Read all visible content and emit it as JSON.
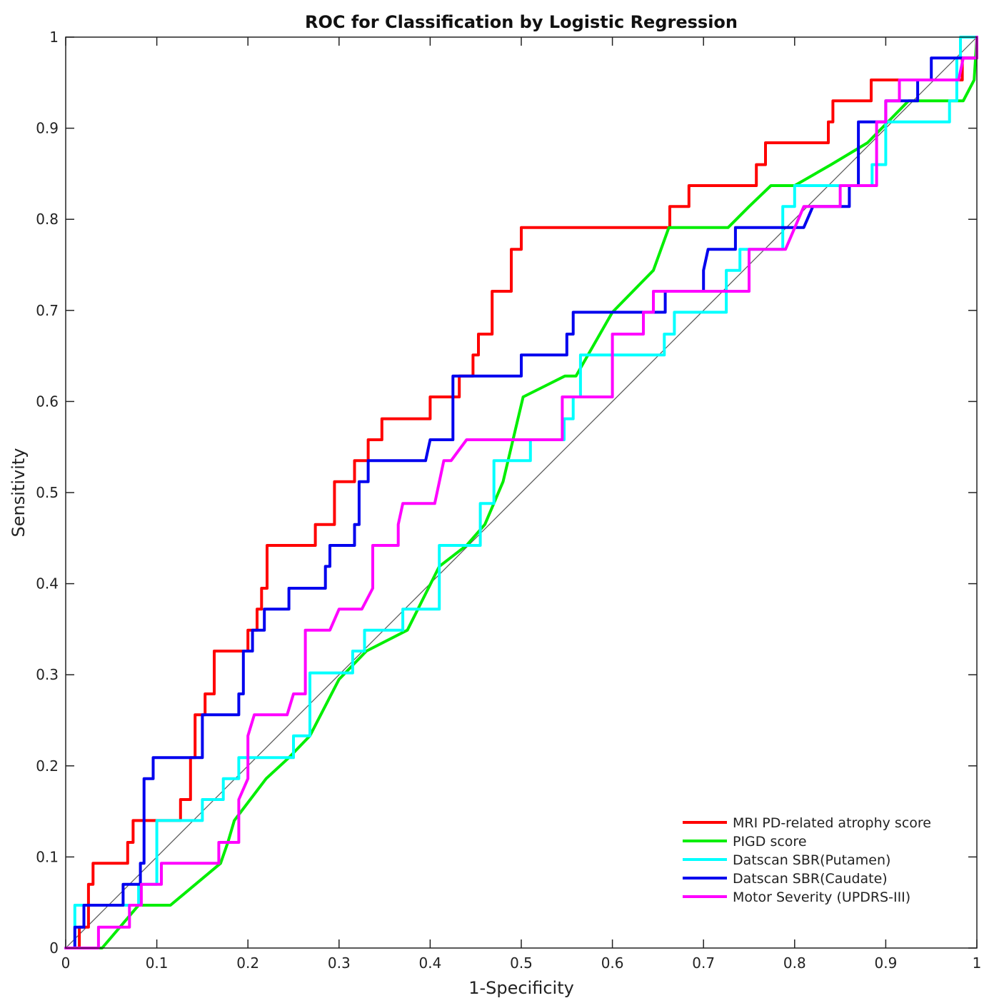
{
  "chart_data": {
    "type": "line",
    "title": "ROC for Classification by Logistic Regression",
    "xlabel": "1-Specificity",
    "ylabel": "Sensitivity",
    "xlim": [
      0,
      1
    ],
    "ylim": [
      0,
      1
    ],
    "xticks": [
      "0",
      "0.1",
      "0.2",
      "0.3",
      "0.4",
      "0.5",
      "0.6",
      "0.7",
      "0.8",
      "0.9",
      "1"
    ],
    "yticks": [
      "0",
      "0.1",
      "0.2",
      "0.3",
      "0.4",
      "0.5",
      "0.6",
      "0.7",
      "0.8",
      "0.9",
      "1"
    ],
    "grid": false,
    "legend_position": "bottom-right",
    "diagonal_color": "#555555",
    "series": [
      {
        "name": "MRI PD-related atrophy score",
        "color": "#ff0000",
        "points": [
          [
            0,
            0
          ],
          [
            0.015,
            0
          ],
          [
            0.015,
            0.023
          ],
          [
            0.025,
            0.023
          ],
          [
            0.025,
            0.07
          ],
          [
            0.03,
            0.07
          ],
          [
            0.03,
            0.093
          ],
          [
            0.068,
            0.093
          ],
          [
            0.068,
            0.116
          ],
          [
            0.074,
            0.116
          ],
          [
            0.074,
            0.14
          ],
          [
            0.126,
            0.14
          ],
          [
            0.126,
            0.163
          ],
          [
            0.137,
            0.163
          ],
          [
            0.137,
            0.209
          ],
          [
            0.142,
            0.209
          ],
          [
            0.142,
            0.256
          ],
          [
            0.153,
            0.256
          ],
          [
            0.153,
            0.279
          ],
          [
            0.163,
            0.279
          ],
          [
            0.163,
            0.326
          ],
          [
            0.2,
            0.326
          ],
          [
            0.2,
            0.349
          ],
          [
            0.21,
            0.349
          ],
          [
            0.21,
            0.372
          ],
          [
            0.215,
            0.372
          ],
          [
            0.215,
            0.395
          ],
          [
            0.221,
            0.395
          ],
          [
            0.221,
            0.442
          ],
          [
            0.274,
            0.442
          ],
          [
            0.274,
            0.465
          ],
          [
            0.295,
            0.465
          ],
          [
            0.295,
            0.512
          ],
          [
            0.317,
            0.512
          ],
          [
            0.317,
            0.535
          ],
          [
            0.332,
            0.535
          ],
          [
            0.332,
            0.558
          ],
          [
            0.347,
            0.558
          ],
          [
            0.347,
            0.581
          ],
          [
            0.4,
            0.581
          ],
          [
            0.4,
            0.605
          ],
          [
            0.432,
            0.605
          ],
          [
            0.432,
            0.628
          ],
          [
            0.447,
            0.628
          ],
          [
            0.447,
            0.651
          ],
          [
            0.453,
            0.651
          ],
          [
            0.453,
            0.674
          ],
          [
            0.468,
            0.674
          ],
          [
            0.468,
            0.721
          ],
          [
            0.489,
            0.721
          ],
          [
            0.489,
            0.767
          ],
          [
            0.5,
            0.767
          ],
          [
            0.5,
            0.791
          ],
          [
            0.663,
            0.791
          ],
          [
            0.663,
            0.814
          ],
          [
            0.684,
            0.814
          ],
          [
            0.684,
            0.837
          ],
          [
            0.758,
            0.837
          ],
          [
            0.758,
            0.86
          ],
          [
            0.768,
            0.86
          ],
          [
            0.768,
            0.884
          ],
          [
            0.837,
            0.884
          ],
          [
            0.837,
            0.907
          ],
          [
            0.842,
            0.907
          ],
          [
            0.842,
            0.93
          ],
          [
            0.884,
            0.93
          ],
          [
            0.884,
            0.953
          ],
          [
            0.984,
            0.953
          ],
          [
            0.984,
            0.977
          ],
          [
            1,
            0.977
          ],
          [
            1,
            1
          ]
        ]
      },
      {
        "name": "PIGD score",
        "color": "#00ee00",
        "points": [
          [
            0,
            0
          ],
          [
            0.04,
            0
          ],
          [
            0.08,
            0.047
          ],
          [
            0.115,
            0.047
          ],
          [
            0.17,
            0.093
          ],
          [
            0.178,
            0.116
          ],
          [
            0.185,
            0.14
          ],
          [
            0.22,
            0.186
          ],
          [
            0.245,
            0.209
          ],
          [
            0.268,
            0.233
          ],
          [
            0.3,
            0.295
          ],
          [
            0.33,
            0.326
          ],
          [
            0.375,
            0.349
          ],
          [
            0.41,
            0.419
          ],
          [
            0.44,
            0.442
          ],
          [
            0.46,
            0.465
          ],
          [
            0.48,
            0.512
          ],
          [
            0.502,
            0.605
          ],
          [
            0.548,
            0.628
          ],
          [
            0.56,
            0.628
          ],
          [
            0.6,
            0.698
          ],
          [
            0.645,
            0.744
          ],
          [
            0.662,
            0.791
          ],
          [
            0.727,
            0.791
          ],
          [
            0.75,
            0.814
          ],
          [
            0.774,
            0.837
          ],
          [
            0.8,
            0.837
          ],
          [
            0.84,
            0.86
          ],
          [
            0.88,
            0.884
          ],
          [
            0.925,
            0.93
          ],
          [
            0.985,
            0.93
          ],
          [
            0.997,
            0.953
          ],
          [
            1,
            1
          ]
        ]
      },
      {
        "name": "Datscan SBR(Putamen)",
        "color": "#00ffff",
        "points": [
          [
            0,
            0
          ],
          [
            0.01,
            0
          ],
          [
            0.01,
            0.047
          ],
          [
            0.08,
            0.047
          ],
          [
            0.08,
            0.07
          ],
          [
            0.1,
            0.07
          ],
          [
            0.1,
            0.14
          ],
          [
            0.15,
            0.14
          ],
          [
            0.15,
            0.163
          ],
          [
            0.173,
            0.163
          ],
          [
            0.173,
            0.186
          ],
          [
            0.19,
            0.186
          ],
          [
            0.19,
            0.209
          ],
          [
            0.25,
            0.209
          ],
          [
            0.25,
            0.233
          ],
          [
            0.268,
            0.233
          ],
          [
            0.268,
            0.302
          ],
          [
            0.315,
            0.302
          ],
          [
            0.315,
            0.326
          ],
          [
            0.328,
            0.326
          ],
          [
            0.328,
            0.349
          ],
          [
            0.37,
            0.349
          ],
          [
            0.37,
            0.372
          ],
          [
            0.41,
            0.372
          ],
          [
            0.41,
            0.442
          ],
          [
            0.455,
            0.442
          ],
          [
            0.455,
            0.488
          ],
          [
            0.47,
            0.488
          ],
          [
            0.47,
            0.535
          ],
          [
            0.51,
            0.535
          ],
          [
            0.51,
            0.558
          ],
          [
            0.547,
            0.558
          ],
          [
            0.547,
            0.581
          ],
          [
            0.557,
            0.581
          ],
          [
            0.557,
            0.605
          ],
          [
            0.565,
            0.605
          ],
          [
            0.565,
            0.651
          ],
          [
            0.657,
            0.651
          ],
          [
            0.657,
            0.674
          ],
          [
            0.668,
            0.674
          ],
          [
            0.668,
            0.698
          ],
          [
            0.725,
            0.698
          ],
          [
            0.725,
            0.744
          ],
          [
            0.74,
            0.744
          ],
          [
            0.74,
            0.767
          ],
          [
            0.787,
            0.767
          ],
          [
            0.787,
            0.814
          ],
          [
            0.8,
            0.814
          ],
          [
            0.8,
            0.837
          ],
          [
            0.885,
            0.837
          ],
          [
            0.885,
            0.86
          ],
          [
            0.9,
            0.86
          ],
          [
            0.9,
            0.907
          ],
          [
            0.97,
            0.907
          ],
          [
            0.97,
            0.93
          ],
          [
            0.978,
            0.93
          ],
          [
            0.978,
            0.977
          ],
          [
            0.982,
            0.977
          ],
          [
            0.982,
            1
          ],
          [
            1,
            1
          ]
        ]
      },
      {
        "name": "Datscan SBR(Caudate)",
        "color": "#0000ee",
        "points": [
          [
            0,
            0
          ],
          [
            0.01,
            0
          ],
          [
            0.01,
            0.023
          ],
          [
            0.02,
            0.023
          ],
          [
            0.02,
            0.047
          ],
          [
            0.063,
            0.047
          ],
          [
            0.063,
            0.07
          ],
          [
            0.082,
            0.07
          ],
          [
            0.082,
            0.093
          ],
          [
            0.086,
            0.093
          ],
          [
            0.086,
            0.186
          ],
          [
            0.096,
            0.186
          ],
          [
            0.096,
            0.209
          ],
          [
            0.15,
            0.209
          ],
          [
            0.15,
            0.256
          ],
          [
            0.19,
            0.256
          ],
          [
            0.19,
            0.279
          ],
          [
            0.195,
            0.279
          ],
          [
            0.195,
            0.326
          ],
          [
            0.205,
            0.326
          ],
          [
            0.205,
            0.349
          ],
          [
            0.218,
            0.349
          ],
          [
            0.218,
            0.372
          ],
          [
            0.245,
            0.372
          ],
          [
            0.245,
            0.395
          ],
          [
            0.285,
            0.395
          ],
          [
            0.285,
            0.419
          ],
          [
            0.29,
            0.419
          ],
          [
            0.29,
            0.442
          ],
          [
            0.317,
            0.442
          ],
          [
            0.317,
            0.465
          ],
          [
            0.322,
            0.465
          ],
          [
            0.322,
            0.512
          ],
          [
            0.332,
            0.512
          ],
          [
            0.332,
            0.535
          ],
          [
            0.395,
            0.535
          ],
          [
            0.4,
            0.558
          ],
          [
            0.425,
            0.558
          ],
          [
            0.425,
            0.628
          ],
          [
            0.5,
            0.628
          ],
          [
            0.5,
            0.651
          ],
          [
            0.55,
            0.651
          ],
          [
            0.55,
            0.674
          ],
          [
            0.557,
            0.674
          ],
          [
            0.557,
            0.698
          ],
          [
            0.658,
            0.698
          ],
          [
            0.658,
            0.721
          ],
          [
            0.7,
            0.721
          ],
          [
            0.7,
            0.744
          ],
          [
            0.705,
            0.767
          ],
          [
            0.735,
            0.767
          ],
          [
            0.735,
            0.791
          ],
          [
            0.81,
            0.791
          ],
          [
            0.82,
            0.814
          ],
          [
            0.86,
            0.814
          ],
          [
            0.86,
            0.837
          ],
          [
            0.87,
            0.837
          ],
          [
            0.87,
            0.907
          ],
          [
            0.9,
            0.907
          ],
          [
            0.9,
            0.93
          ],
          [
            0.935,
            0.93
          ],
          [
            0.935,
            0.953
          ],
          [
            0.95,
            0.953
          ],
          [
            0.95,
            0.977
          ],
          [
            1,
            0.977
          ],
          [
            1,
            1
          ]
        ]
      },
      {
        "name": "Motor Severity (UPDRS-III)",
        "color": "#ff00ff",
        "points": [
          [
            0,
            0
          ],
          [
            0.036,
            0
          ],
          [
            0.036,
            0.023
          ],
          [
            0.07,
            0.023
          ],
          [
            0.07,
            0.047
          ],
          [
            0.083,
            0.047
          ],
          [
            0.083,
            0.07
          ],
          [
            0.105,
            0.07
          ],
          [
            0.105,
            0.093
          ],
          [
            0.168,
            0.093
          ],
          [
            0.168,
            0.116
          ],
          [
            0.19,
            0.116
          ],
          [
            0.19,
            0.163
          ],
          [
            0.2,
            0.186
          ],
          [
            0.2,
            0.233
          ],
          [
            0.207,
            0.256
          ],
          [
            0.243,
            0.256
          ],
          [
            0.25,
            0.279
          ],
          [
            0.263,
            0.279
          ],
          [
            0.263,
            0.349
          ],
          [
            0.29,
            0.349
          ],
          [
            0.3,
            0.372
          ],
          [
            0.325,
            0.372
          ],
          [
            0.337,
            0.395
          ],
          [
            0.337,
            0.442
          ],
          [
            0.365,
            0.442
          ],
          [
            0.365,
            0.465
          ],
          [
            0.37,
            0.488
          ],
          [
            0.405,
            0.488
          ],
          [
            0.415,
            0.535
          ],
          [
            0.423,
            0.535
          ],
          [
            0.44,
            0.558
          ],
          [
            0.545,
            0.558
          ],
          [
            0.545,
            0.605
          ],
          [
            0.6,
            0.605
          ],
          [
            0.6,
            0.674
          ],
          [
            0.634,
            0.674
          ],
          [
            0.634,
            0.698
          ],
          [
            0.645,
            0.698
          ],
          [
            0.645,
            0.721
          ],
          [
            0.75,
            0.721
          ],
          [
            0.75,
            0.767
          ],
          [
            0.79,
            0.767
          ],
          [
            0.81,
            0.814
          ],
          [
            0.85,
            0.814
          ],
          [
            0.85,
            0.837
          ],
          [
            0.89,
            0.837
          ],
          [
            0.89,
            0.907
          ],
          [
            0.9,
            0.907
          ],
          [
            0.9,
            0.93
          ],
          [
            0.915,
            0.93
          ],
          [
            0.915,
            0.953
          ],
          [
            0.98,
            0.953
          ],
          [
            0.985,
            0.977
          ],
          [
            1,
            0.977
          ],
          [
            1,
            1
          ]
        ]
      }
    ]
  }
}
